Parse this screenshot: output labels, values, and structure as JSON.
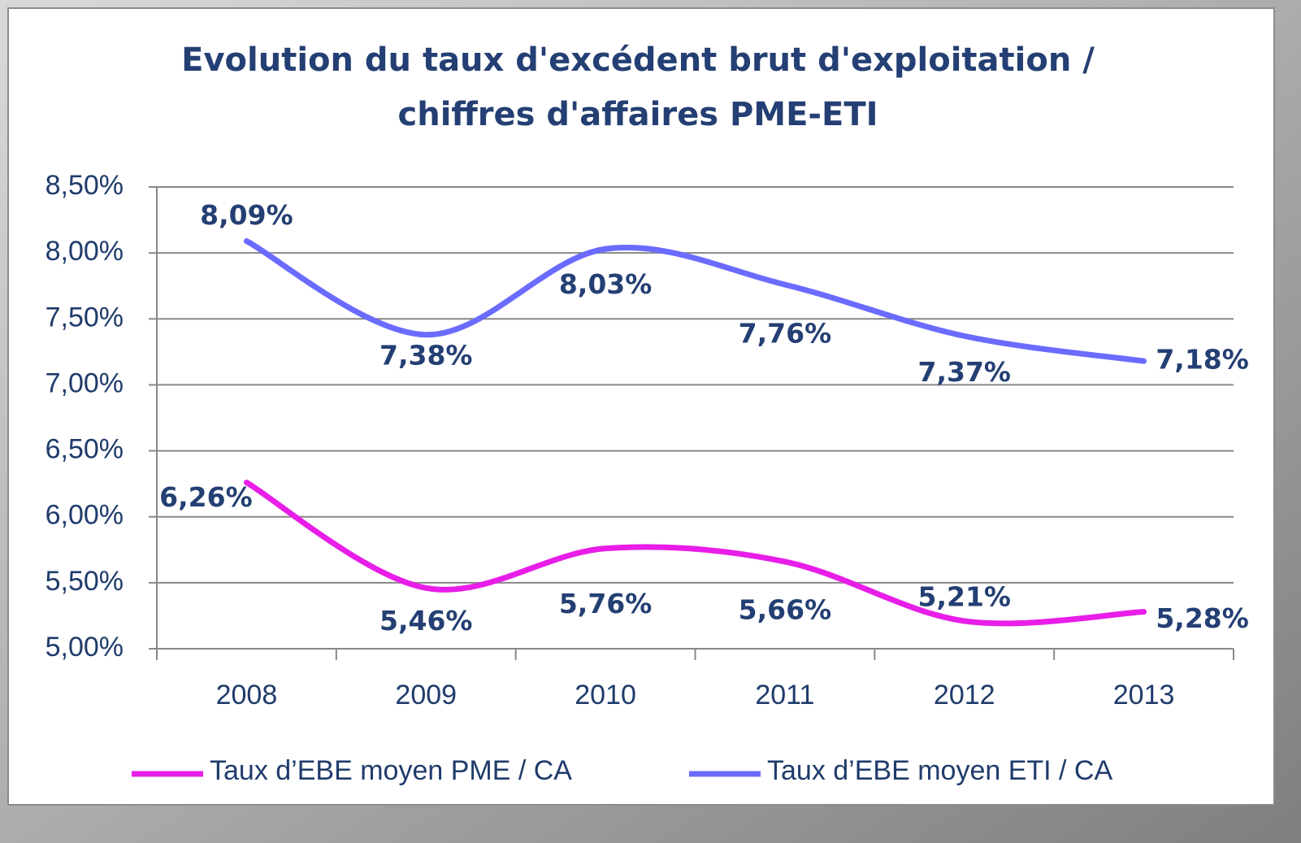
{
  "chart_data": {
    "type": "line",
    "title": [
      "Evolution du taux d'excédent brut d'exploitation /",
      "chiffres d'affaires PME-ETI"
    ],
    "categories": [
      "2008",
      "2009",
      "2010",
      "2011",
      "2012",
      "2013"
    ],
    "series": [
      {
        "name": "Taux d’EBE moyen PME / CA",
        "color": "#e81ee8",
        "values": [
          6.26,
          5.46,
          5.76,
          5.66,
          5.21,
          5.28
        ],
        "value_labels": [
          "6,26%",
          "5,46%",
          "5,76%",
          "5,66%",
          "5,21%",
          "5,28%"
        ]
      },
      {
        "name": "Taux d’EBE moyen ETI / CA",
        "color": "#6b6bff",
        "values": [
          8.09,
          7.38,
          8.03,
          7.76,
          7.37,
          7.18
        ],
        "value_labels": [
          "8,09%",
          "7,38%",
          "8,03%",
          "7,76%",
          "7,37%",
          "7,18%"
        ]
      }
    ],
    "ylim": [
      5.0,
      8.5
    ],
    "yticks": [
      {
        "value": 5.0,
        "label": "5,00%"
      },
      {
        "value": 5.5,
        "label": "5,50%"
      },
      {
        "value": 6.0,
        "label": "6,00%"
      },
      {
        "value": 6.5,
        "label": "6,50%"
      },
      {
        "value": 7.0,
        "label": "7,00%"
      },
      {
        "value": 7.5,
        "label": "7,50%"
      },
      {
        "value": 8.0,
        "label": "8,00%"
      },
      {
        "value": 8.5,
        "label": "8,50%"
      }
    ],
    "grid": true,
    "smooth": true,
    "legend": "bottom"
  }
}
